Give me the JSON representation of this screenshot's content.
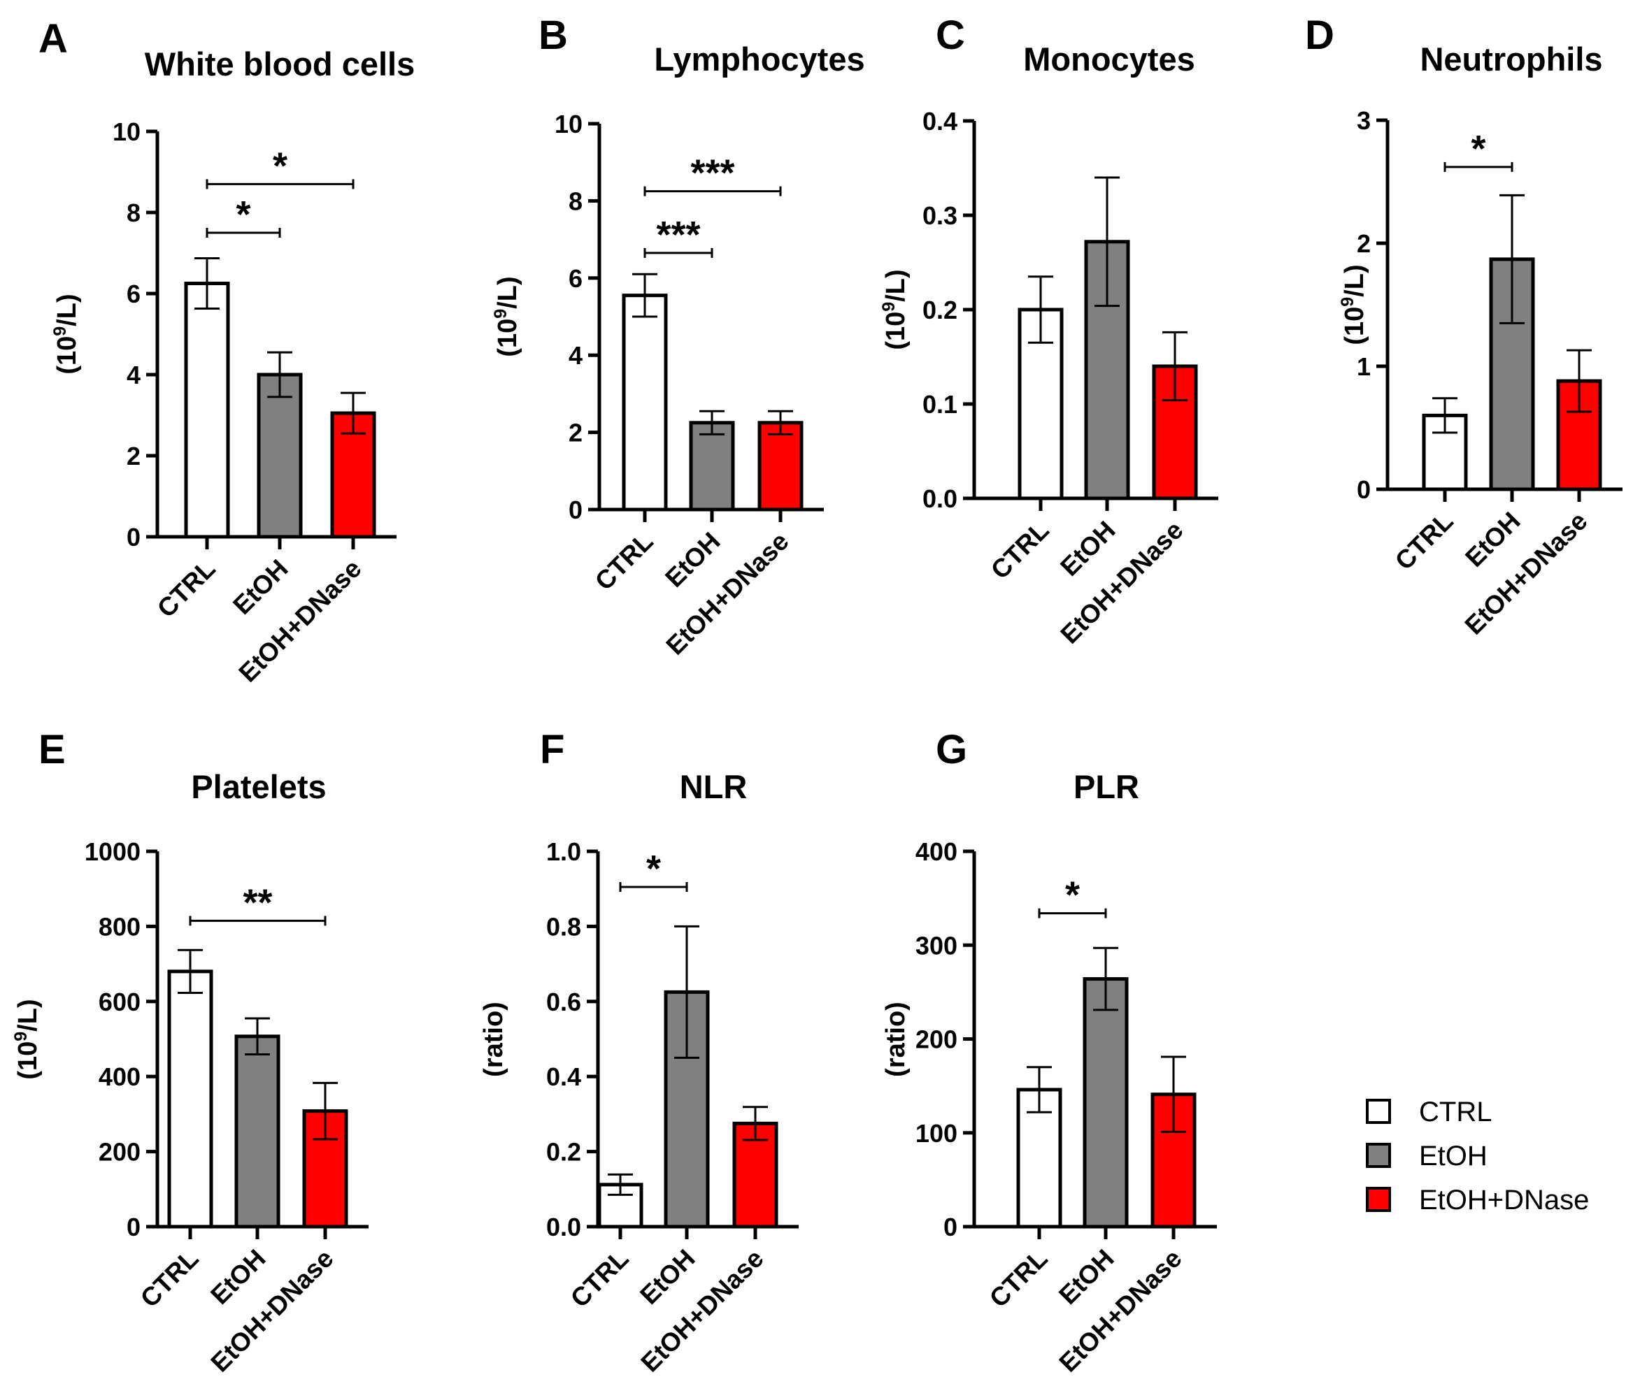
{
  "colors": {
    "CTRL": "#ffffff",
    "EtOH": "#808080",
    "EtOH+DNase": "#ff0000",
    "stroke": "#000000"
  },
  "legend": {
    "items": [
      {
        "label": "CTRL",
        "color": "#ffffff"
      },
      {
        "label": "EtOH",
        "color": "#808080"
      },
      {
        "label": "EtOH+DNase",
        "color": "#ff0000"
      }
    ]
  },
  "chart_data": [
    {
      "letter": "A",
      "type": "bar",
      "title": "White blood cells",
      "ylabel": {
        "pre": "(10",
        "sup": "9",
        "post": "/L)"
      },
      "categories": [
        "CTRL",
        "EtOH",
        "EtOH+DNase"
      ],
      "values": [
        6.25,
        4.0,
        3.05
      ],
      "errors": [
        0.62,
        0.55,
        0.5
      ],
      "ylim": [
        0,
        10
      ],
      "yticks": [
        "0",
        "2",
        "4",
        "6",
        "8",
        "10"
      ],
      "ytick_values": [
        0,
        2,
        4,
        6,
        8,
        10
      ],
      "significance": [
        {
          "from": 0,
          "to": 2,
          "label": "*",
          "y": 8.7
        },
        {
          "from": 0,
          "to": 1,
          "label": "*",
          "y": 7.5
        }
      ]
    },
    {
      "letter": "B",
      "type": "bar",
      "title": "Lymphocytes",
      "ylabel": {
        "pre": "(10",
        "sup": "9",
        "post": "/L)"
      },
      "categories": [
        "CTRL",
        "EtOH",
        "EtOH+DNase"
      ],
      "values": [
        5.55,
        2.25,
        2.25
      ],
      "errors": [
        0.55,
        0.3,
        0.3
      ],
      "ylim": [
        0,
        10
      ],
      "yticks": [
        "0",
        "2",
        "4",
        "6",
        "8",
        "10"
      ],
      "ytick_values": [
        0,
        2,
        4,
        6,
        8,
        10
      ],
      "significance": [
        {
          "from": 0,
          "to": 2,
          "label": "***",
          "y": 8.25
        },
        {
          "from": 0,
          "to": 1,
          "label": "***",
          "y": 6.65
        }
      ]
    },
    {
      "letter": "C",
      "type": "bar",
      "title": "Monocytes",
      "ylabel": {
        "pre": "(10",
        "sup": "9",
        "post": "/L)"
      },
      "categories": [
        "CTRL",
        "EtOH",
        "EtOH+DNase"
      ],
      "values": [
        0.2,
        0.272,
        0.14
      ],
      "errors": [
        0.035,
        0.068,
        0.036
      ],
      "ylim": [
        0,
        0.4
      ],
      "yticks": [
        "0.0",
        "0.1",
        "0.2",
        "0.3",
        "0.4"
      ],
      "ytick_values": [
        0,
        0.1,
        0.2,
        0.3,
        0.4
      ],
      "significance": []
    },
    {
      "letter": "D",
      "type": "bar",
      "title": "Neutrophils",
      "ylabel": {
        "pre": "(10",
        "sup": "9",
        "post": "/L)"
      },
      "categories": [
        "CTRL",
        "EtOH",
        "EtOH+DNase"
      ],
      "values": [
        0.6,
        1.87,
        0.88
      ],
      "errors": [
        0.14,
        0.52,
        0.25
      ],
      "ylim": [
        0,
        3
      ],
      "yticks": [
        "0",
        "1",
        "2",
        "3"
      ],
      "ytick_values": [
        0,
        1,
        2,
        3
      ],
      "significance": [
        {
          "from": 0,
          "to": 1,
          "label": "*",
          "y": 2.62
        }
      ]
    },
    {
      "letter": "E",
      "type": "bar",
      "title": "Platelets",
      "ylabel": {
        "pre": "(10",
        "sup": "9",
        "post": "/L)"
      },
      "categories": [
        "CTRL",
        "EtOH",
        "EtOH+DNase"
      ],
      "values": [
        680,
        507,
        308
      ],
      "errors": [
        57,
        48,
        75
      ],
      "ylim": [
        0,
        1000
      ],
      "yticks": [
        "0",
        "200",
        "400",
        "600",
        "800",
        "1000"
      ],
      "ytick_values": [
        0,
        200,
        400,
        600,
        800,
        1000
      ],
      "significance": [
        {
          "from": 0,
          "to": 2,
          "label": "**",
          "y": 815
        }
      ]
    },
    {
      "letter": "F",
      "type": "bar",
      "title": "NLR",
      "ylabel": {
        "pre": "(ratio)",
        "sup": "",
        "post": ""
      },
      "categories": [
        "CTRL",
        "EtOH",
        "EtOH+DNase"
      ],
      "values": [
        0.112,
        0.625,
        0.275
      ],
      "errors": [
        0.027,
        0.175,
        0.044
      ],
      "ylim": [
        0,
        1.0
      ],
      "yticks": [
        "0.0",
        "0.2",
        "0.4",
        "0.6",
        "0.8",
        "1.0"
      ],
      "ytick_values": [
        0,
        0.2,
        0.4,
        0.6,
        0.8,
        1.0
      ],
      "significance": [
        {
          "from": 0,
          "to": 1,
          "label": "*",
          "y": 0.905
        }
      ]
    },
    {
      "letter": "G",
      "type": "bar",
      "title": "PLR",
      "ylabel": {
        "pre": "(ratio)",
        "sup": "",
        "post": ""
      },
      "categories": [
        "CTRL",
        "EtOH",
        "EtOH+DNase"
      ],
      "values": [
        146,
        264,
        141
      ],
      "errors": [
        24,
        33,
        40
      ],
      "ylim": [
        0,
        400
      ],
      "yticks": [
        "0",
        "100",
        "200",
        "300",
        "400"
      ],
      "ytick_values": [
        0,
        100,
        200,
        300,
        400
      ],
      "significance": [
        {
          "from": 0,
          "to": 1,
          "label": "*",
          "y": 334
        }
      ]
    }
  ]
}
